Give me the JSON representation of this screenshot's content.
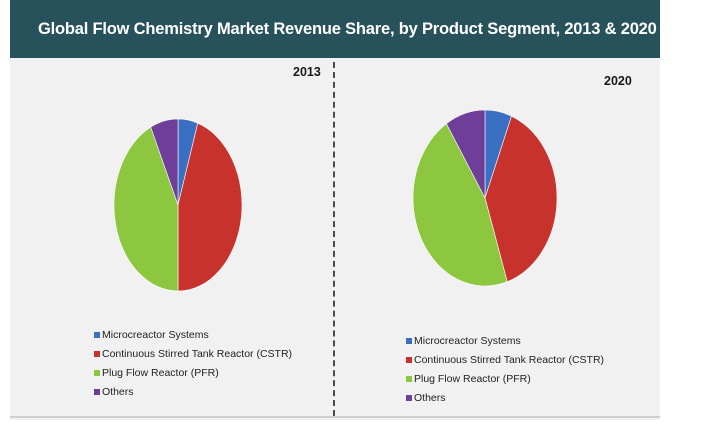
{
  "title": "Global Flow Chemistry Market Revenue  Share, by Product Segment, 2013 & 2020",
  "colors": {
    "header": "#27525b",
    "microreactor": "#3b6fc4",
    "cstr": "#c8322c",
    "pfr": "#8dc63f",
    "others": "#6f3e99"
  },
  "chart_data": [
    {
      "type": "pie",
      "label": "2013",
      "categories": [
        "Microcreactor Systems",
        "Continuous Stirred Tank Reactor (CSTR)",
        "Plug Flow Reactor (PFR)",
        "Others"
      ],
      "values": [
        5,
        45,
        43,
        7
      ],
      "legend": "bottom"
    },
    {
      "type": "pie",
      "label": "2020",
      "categories": [
        "Microcreactor Systems",
        "Continuous Stirred Tank Reactor (CSTR)",
        "Plug Flow Reactor (PFR)",
        "Others"
      ],
      "values": [
        6,
        39,
        46,
        9
      ],
      "legend": "bottom"
    }
  ]
}
